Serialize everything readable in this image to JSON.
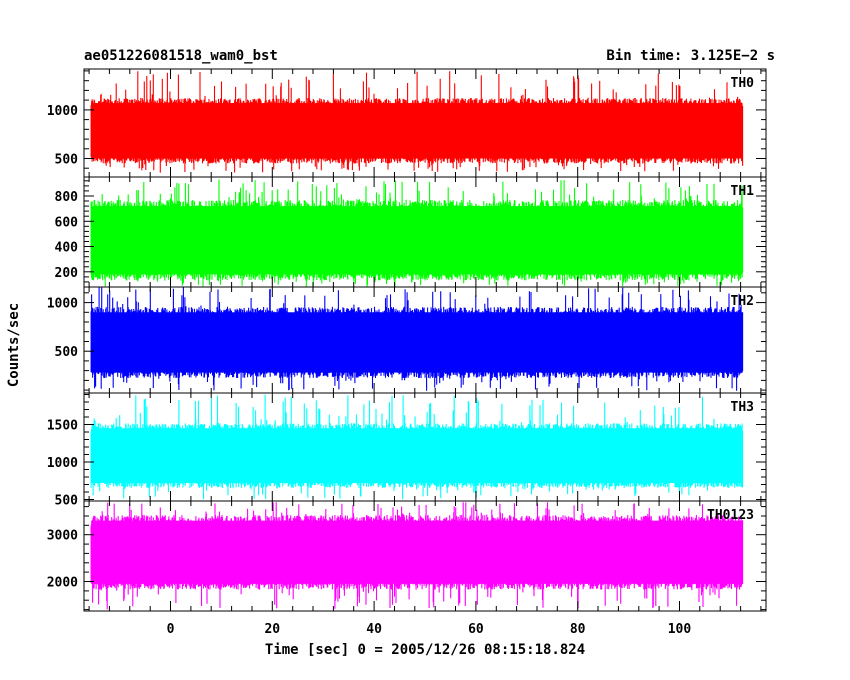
{
  "header": {
    "left_title": "ae051226081518_wam0_bst",
    "right_title": "Bin time: 3.125E−2 s"
  },
  "axes": {
    "xlabel": "Time [sec] 0 = 2005/12/26 08:15:18.824",
    "ylabel": "Counts/sec"
  },
  "chart_data": [
    {
      "type": "line",
      "panel_label": "TH0",
      "color": "#ff0000",
      "x_range": [
        -15.6,
        112.4
      ],
      "xlim": [
        -17,
        117
      ],
      "ylim": [
        310,
        1420
      ],
      "yticks": [
        500,
        1000
      ],
      "xticks": [
        0,
        20,
        40,
        60,
        80,
        100
      ],
      "band": {
        "low": 500,
        "high": 1070,
        "spike_min": 350,
        "spike_max": 1400
      }
    },
    {
      "type": "line",
      "panel_label": "TH1",
      "color": "#00ff00",
      "x_range": [
        -15.6,
        112.4
      ],
      "xlim": [
        -17,
        117
      ],
      "ylim": [
        80,
        950
      ],
      "yticks": [
        200,
        400,
        600,
        800
      ],
      "xticks": [
        0,
        20,
        40,
        60,
        80,
        100
      ],
      "band": {
        "low": 180,
        "high": 720,
        "spike_min": 80,
        "spike_max": 930
      }
    },
    {
      "type": "line",
      "panel_label": "TH2",
      "color": "#0000ff",
      "x_range": [
        -15.6,
        112.4
      ],
      "xlim": [
        -17,
        117
      ],
      "ylim": [
        70,
        1160
      ],
      "yticks": [
        500,
        1000
      ],
      "xticks": [
        0,
        20,
        40,
        60,
        80,
        100
      ],
      "band": {
        "low": 280,
        "high": 900,
        "spike_min": 80,
        "spike_max": 1160
      }
    },
    {
      "type": "line",
      "panel_label": "TH3",
      "color": "#00ffff",
      "x_range": [
        -15.6,
        112.4
      ],
      "xlim": [
        -17,
        117
      ],
      "ylim": [
        480,
        1920
      ],
      "yticks": [
        500,
        1000,
        1500
      ],
      "xticks": [
        0,
        20,
        40,
        60,
        80,
        100
      ],
      "band": {
        "low": 720,
        "high": 1450,
        "spike_min": 500,
        "spike_max": 1900
      }
    },
    {
      "type": "line",
      "panel_label": "TH0123",
      "color": "#ff00ff",
      "x_range": [
        -15.6,
        112.4
      ],
      "xlim": [
        -17,
        117
      ],
      "ylim": [
        1370,
        3720
      ],
      "yticks": [
        2000,
        3000
      ],
      "xticks": [
        0,
        20,
        40,
        60,
        80,
        100
      ],
      "band": {
        "low": 1950,
        "high": 3300,
        "spike_min": 1380,
        "spike_max": 3700
      }
    }
  ]
}
